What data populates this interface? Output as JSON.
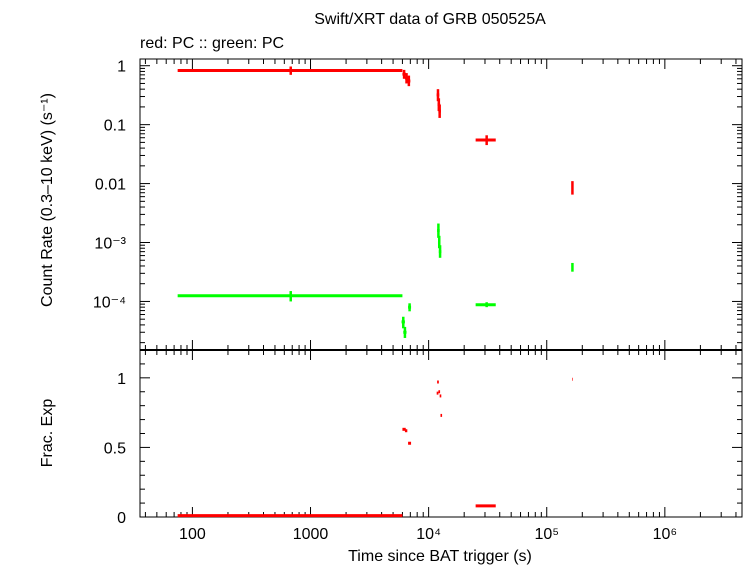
{
  "chart_data": [
    {
      "type": "scatter",
      "title": "Swift/XRT data of GRB 050525A",
      "subtitle": "red: PC  :: green: PC",
      "ylabel": "Count Rate (0.3–10 keV) (s⁻¹)",
      "x_scale": "log",
      "y_scale": "log",
      "xlim": [
        36,
        4500000
      ],
      "ylim": [
        1.5e-05,
        1.3
      ],
      "y_ticks": [
        {
          "value": 1,
          "label": "1"
        },
        {
          "value": 0.1,
          "label": "0.1"
        },
        {
          "value": 0.01,
          "label": "0.01"
        },
        {
          "value": 0.001,
          "label": "10⁻³"
        },
        {
          "value": 0.0001,
          "label": "10⁻⁴"
        }
      ],
      "series": [
        {
          "name": "PC",
          "color": "#ff0000",
          "points": [
            {
              "x": 680,
              "y": 0.83,
              "xmin": 75,
              "xmax": 6000,
              "ymin": 0.7,
              "ymax": 0.97
            },
            {
              "x": 6200,
              "y": 0.72,
              "xmin": 6000,
              "xmax": 6400,
              "ymin": 0.6,
              "ymax": 0.85
            },
            {
              "x": 6500,
              "y": 0.62,
              "xmin": 6300,
              "xmax": 6700,
              "ymin": 0.5,
              "ymax": 0.75
            },
            {
              "x": 6800,
              "y": 0.55,
              "xmin": 6600,
              "xmax": 7000,
              "ymin": 0.45,
              "ymax": 0.68
            },
            {
              "x": 12000,
              "y": 0.32,
              "xmin": 11700,
              "xmax": 12300,
              "ymin": 0.25,
              "ymax": 0.4
            },
            {
              "x": 12200,
              "y": 0.22,
              "xmin": 11900,
              "xmax": 12500,
              "ymin": 0.17,
              "ymax": 0.28
            },
            {
              "x": 12400,
              "y": 0.17,
              "xmin": 12100,
              "xmax": 12700,
              "ymin": 0.13,
              "ymax": 0.22
            },
            {
              "x": 31000,
              "y": 0.055,
              "xmin": 25000,
              "xmax": 37000,
              "ymin": 0.045,
              "ymax": 0.066
            },
            {
              "x": 165000,
              "y": 0.0085,
              "xmin": 164000,
              "xmax": 166000,
              "ymin": 0.0065,
              "ymax": 0.011
            }
          ]
        },
        {
          "name": "PC",
          "color": "#00ff00",
          "points": [
            {
              "x": 680,
              "y": 0.000125,
              "xmin": 75,
              "xmax": 6000,
              "ymin": 0.0001,
              "ymax": 0.00015
            },
            {
              "x": 6100,
              "y": 4.5e-05,
              "xmin": 5900,
              "xmax": 6300,
              "ymin": 3.5e-05,
              "ymax": 5.5e-05
            },
            {
              "x": 6300,
              "y": 3e-05,
              "xmin": 6100,
              "xmax": 6500,
              "ymin": 2.4e-05,
              "ymax": 3.7e-05
            },
            {
              "x": 6900,
              "y": 8e-05,
              "xmin": 6700,
              "xmax": 7100,
              "ymin": 6.8e-05,
              "ymax": 9.3e-05
            },
            {
              "x": 12100,
              "y": 0.0016,
              "xmin": 11800,
              "xmax": 12400,
              "ymin": 0.0012,
              "ymax": 0.0021
            },
            {
              "x": 12300,
              "y": 0.001,
              "xmin": 12000,
              "xmax": 12600,
              "ymin": 0.0008,
              "ymax": 0.0013
            },
            {
              "x": 12500,
              "y": 0.0007,
              "xmin": 12200,
              "xmax": 12800,
              "ymin": 0.00055,
              "ymax": 0.0009
            },
            {
              "x": 31000,
              "y": 8.8e-05,
              "xmin": 25000,
              "xmax": 37000,
              "ymin": 8e-05,
              "ymax": 9.7e-05
            },
            {
              "x": 165000,
              "y": 0.00038,
              "xmin": 164000,
              "xmax": 166000,
              "ymin": 0.00032,
              "ymax": 0.00045
            }
          ]
        }
      ]
    },
    {
      "type": "scatter",
      "xlabel": "Time since BAT trigger (s)",
      "ylabel": "Frac. Exp",
      "x_scale": "log",
      "y_scale": "linear",
      "xlim": [
        36,
        4500000
      ],
      "ylim": [
        0,
        1.2
      ],
      "x_ticks": [
        {
          "value": 100,
          "label": "100"
        },
        {
          "value": 1000,
          "label": "1000"
        },
        {
          "value": 10000,
          "label": "10⁴"
        },
        {
          "value": 100000,
          "label": "10⁵"
        },
        {
          "value": 1000000,
          "label": "10⁶"
        }
      ],
      "y_ticks": [
        {
          "value": 0,
          "label": "0"
        },
        {
          "value": 0.5,
          "label": "0.5"
        },
        {
          "value": 1,
          "label": "1"
        }
      ],
      "series": [
        {
          "name": "PC",
          "color": "#ff0000",
          "points": [
            {
              "x": 680,
              "y": 0.01,
              "xmin": 75,
              "xmax": 6000
            },
            {
              "x": 6200,
              "y": 0.63,
              "xmin": 6000,
              "xmax": 6400
            },
            {
              "x": 6450,
              "y": 0.62,
              "xmin": 6300,
              "xmax": 6600
            },
            {
              "x": 6900,
              "y": 0.53,
              "xmin": 6700,
              "xmax": 7100
            },
            {
              "x": 12000,
              "y": 0.97,
              "xmin": 11800,
              "xmax": 12200
            },
            {
              "x": 11900,
              "y": 0.89,
              "xmin": 11700,
              "xmax": 12100
            },
            {
              "x": 12300,
              "y": 0.9,
              "xmin": 12100,
              "xmax": 12500
            },
            {
              "x": 12600,
              "y": 0.87,
              "xmin": 12400,
              "xmax": 12800
            },
            {
              "x": 12800,
              "y": 0.73,
              "xmin": 12600,
              "xmax": 13000
            },
            {
              "x": 31000,
              "y": 0.08,
              "xmin": 25000,
              "xmax": 37000
            },
            {
              "x": 165000,
              "y": 0.99,
              "xmin": 164000,
              "xmax": 166000
            }
          ]
        }
      ]
    }
  ]
}
